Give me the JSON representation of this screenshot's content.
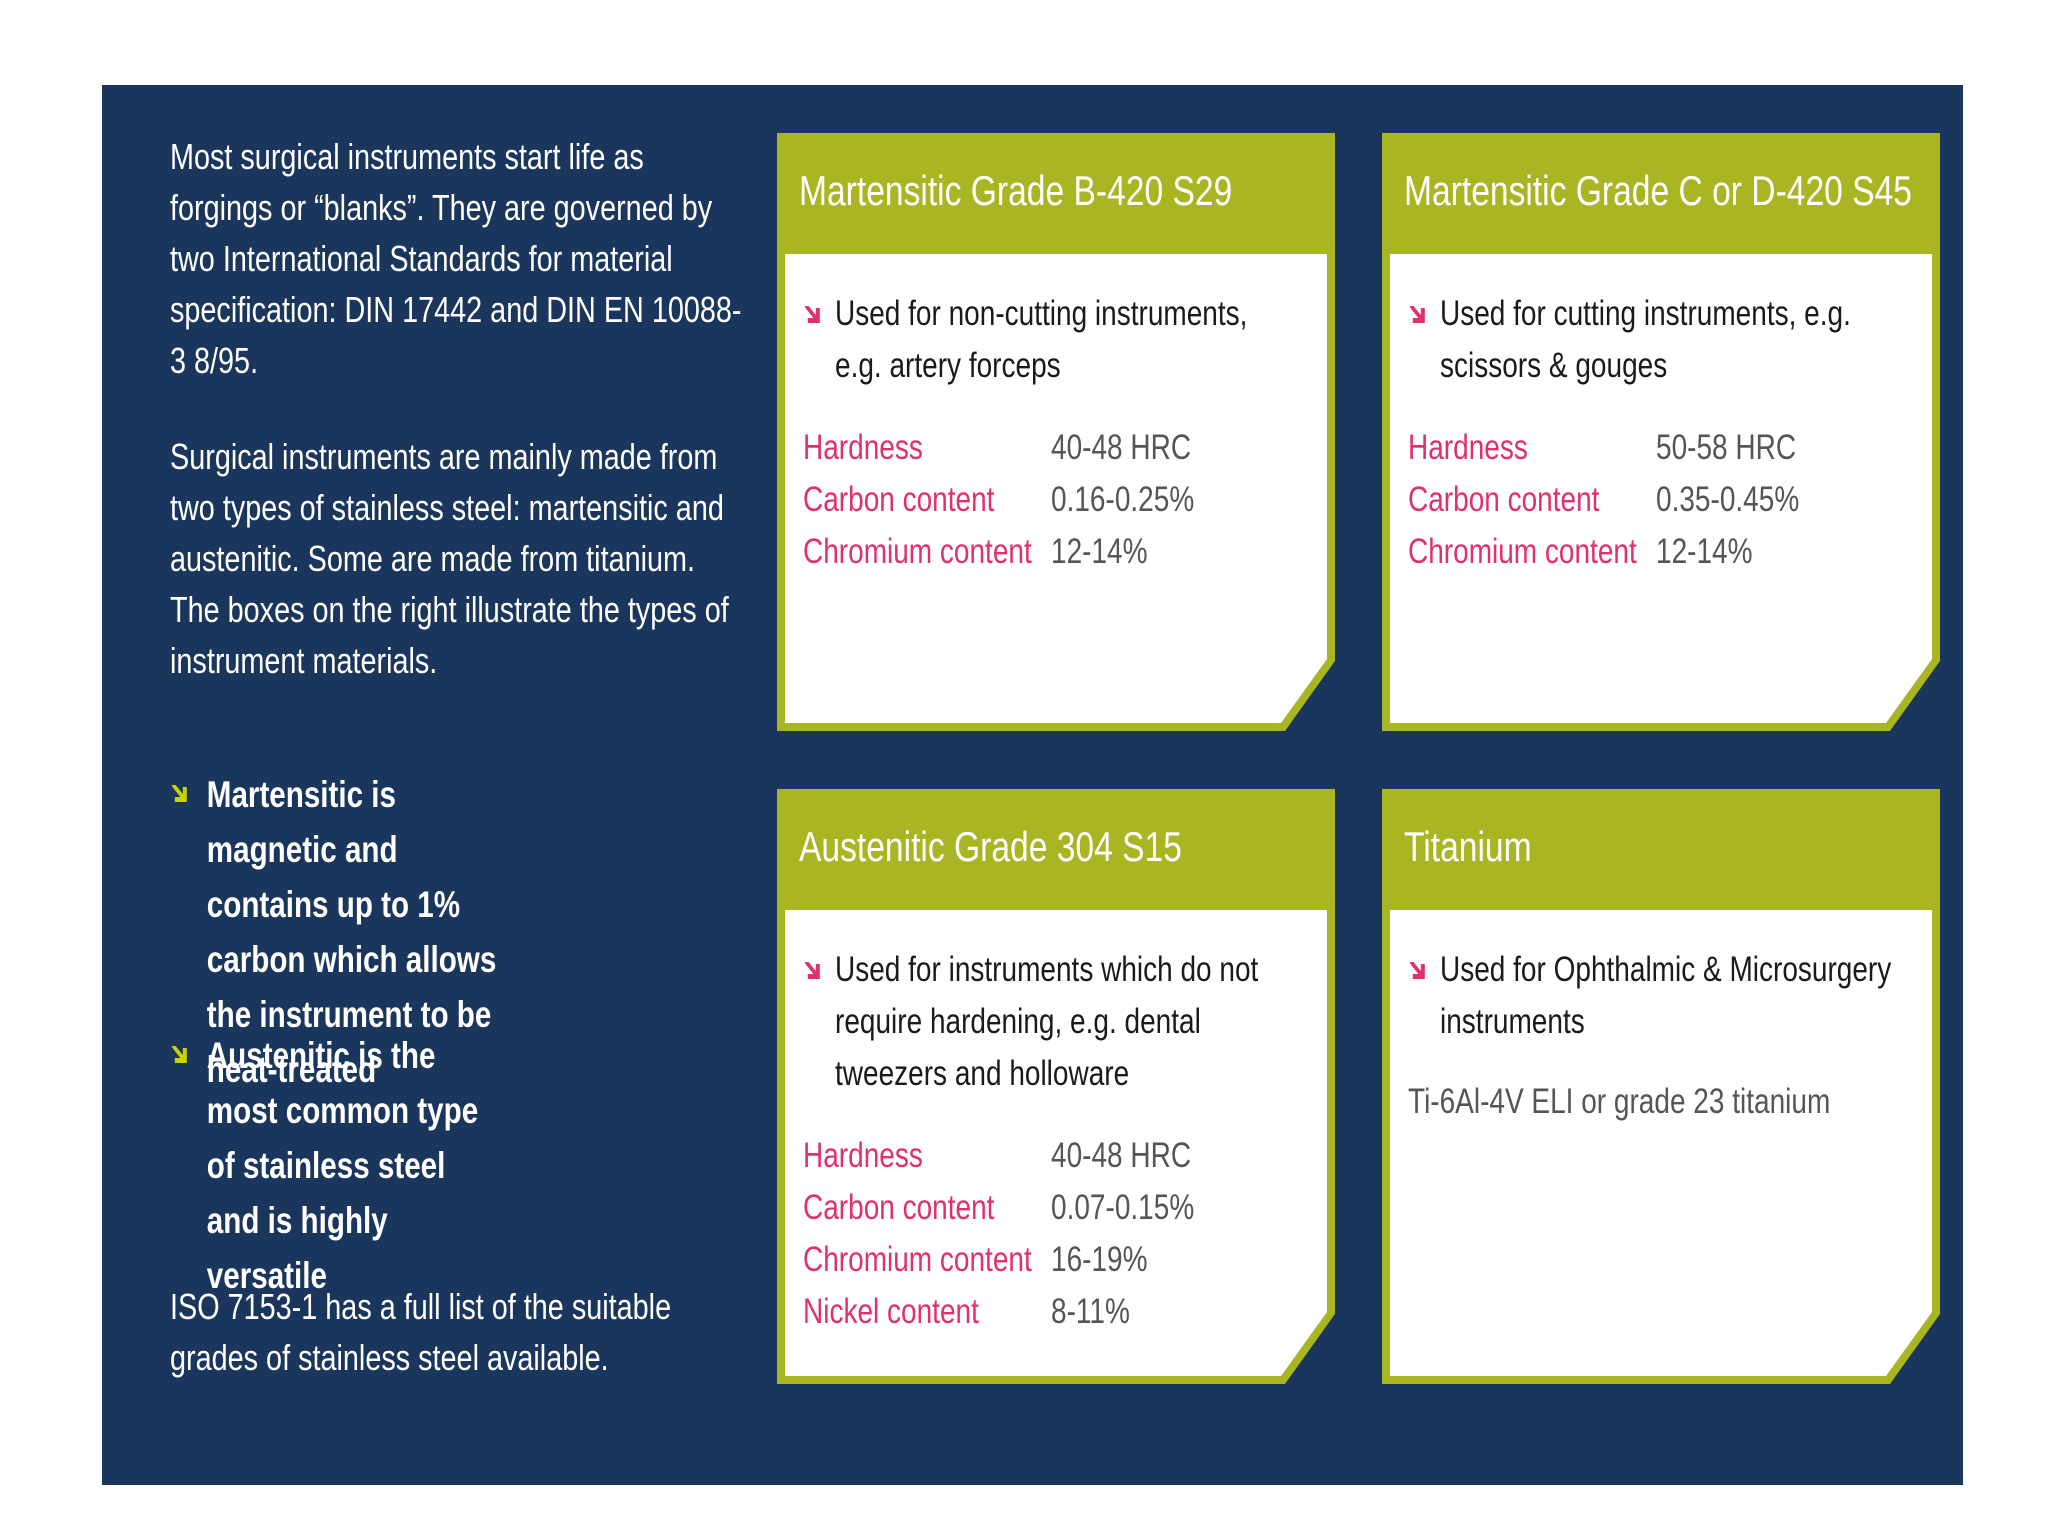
{
  "intro": {
    "paragraphs": [
      "Most surgical instruments start life as forgings or “blanks”. They are governed by two International Standards for material specification: DIN 17442 and DIN EN 10088-3 8/95.",
      "Surgical instruments are mainly made from two types of stainless steel: martensitic and austenitic. Some are made from titanium. The boxes on the right illustrate the types of instrument materials."
    ],
    "bullets": [
      "Martensitic is magnetic and contains up to 1% carbon which allows the instrument to be heat-treated",
      "Austenitic is the most common type of stainless steel and is highly versatile"
    ],
    "footer": "ISO 7153-1 has a full list of the suitable grades of stainless steel available."
  },
  "cards": [
    {
      "title": "Martensitic Grade B-420 S29",
      "use": "Used for non-cutting instruments, e.g. artery forceps",
      "properties": [
        {
          "label": "Hardness",
          "value": "40-48 HRC"
        },
        {
          "label": "Carbon content",
          "value": "0.16-0.25%"
        },
        {
          "label": "Chromium content",
          "value": "12-14%"
        }
      ]
    },
    {
      "title": "Martensitic Grade C or D-420 S45",
      "use": "Used for cutting instruments, e.g. scissors & gouges",
      "properties": [
        {
          "label": "Hardness",
          "value": "50-58 HRC"
        },
        {
          "label": "Carbon content",
          "value": "0.35-0.45%"
        },
        {
          "label": "Chromium content",
          "value": "12-14%"
        }
      ]
    },
    {
      "title": "Austenitic Grade 304 S15",
      "use": "Used for instruments which do not require hardening, e.g. dental tweezers and holloware",
      "properties": [
        {
          "label": "Hardness",
          "value": "40-48 HRC"
        },
        {
          "label": "Carbon content",
          "value": "0.07-0.15%"
        },
        {
          "label": "Chromium content",
          "value": "16-19%"
        },
        {
          "label": "Nickel content",
          "value": "8-11%"
        }
      ]
    },
    {
      "title": "Titanium",
      "use": "Used for Ophthalmic & Microsurgery instruments",
      "note": "Ti-6Al-4V ELI or grade 23 titanium"
    }
  ]
}
